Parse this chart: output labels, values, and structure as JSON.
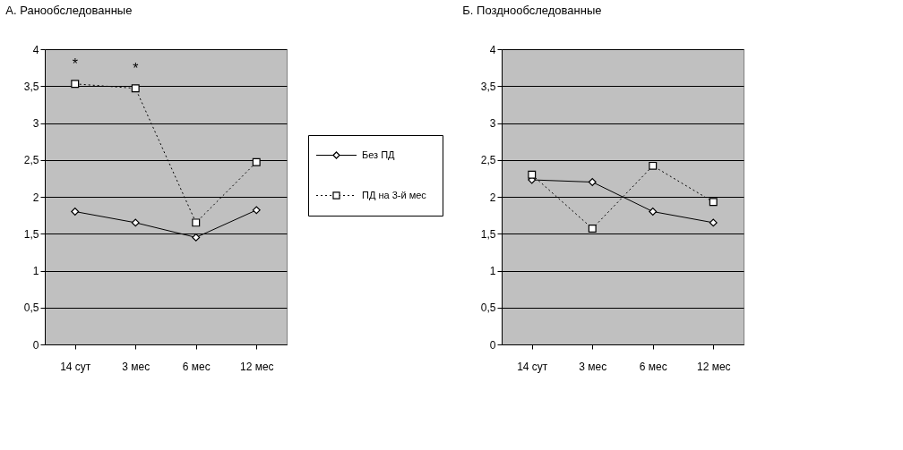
{
  "chart_data": [
    {
      "type": "line",
      "title": "А.   Ранообследованные",
      "categories": [
        "14 сут",
        "3 мес",
        "6 мес",
        "12 мес"
      ],
      "series": [
        {
          "name": "Без ПД",
          "color": "#000000",
          "values": [
            1.8,
            1.65,
            1.45,
            1.82
          ],
          "marker": "diamond",
          "line_style": "solid"
        },
        {
          "name": "ПД на 3-й мес",
          "color": "#000000",
          "values": [
            3.53,
            3.47,
            1.65,
            2.47
          ],
          "marker": "square",
          "line_style": "dotted"
        }
      ],
      "ylim": [
        0,
        4
      ],
      "yticks": [
        0,
        {
          "value": 0.5,
          "label": "0,5"
        },
        1,
        {
          "value": 1.5,
          "label": "1,5"
        },
        2,
        {
          "value": 2.5,
          "label": "2,5"
        },
        3,
        {
          "value": 3.5,
          "label": "3,5"
        },
        4
      ],
      "grid": "y",
      "legend": "right",
      "annotations": [
        {
          "text": "*",
          "x": "14 сут",
          "y": 3.53
        },
        {
          "text": "*",
          "x": "3 мес",
          "y": 3.47
        }
      ]
    },
    {
      "type": "line",
      "title": "Б.   Позднообследованные",
      "categories": [
        "14 сут",
        "3 мес",
        "6 мес",
        "12 мес"
      ],
      "series": [
        {
          "color": "#000000",
          "values": [
            2.23,
            2.2,
            1.8,
            1.65
          ],
          "marker": "diamond",
          "line_style": "solid"
        },
        {
          "color": "#000000",
          "values": [
            2.3,
            1.57,
            2.42,
            1.93
          ],
          "marker": "square",
          "line_style": "dotted"
        }
      ],
      "ylim": [
        0,
        4
      ],
      "yticks": [
        0,
        {
          "value": 0.5,
          "label": "0,5"
        },
        1,
        {
          "value": 1.5,
          "label": "1,5"
        },
        2,
        {
          "value": 2.5,
          "label": "2,5"
        },
        3,
        {
          "value": 3.5,
          "label": "3,5"
        },
        4
      ],
      "grid": "y"
    }
  ]
}
